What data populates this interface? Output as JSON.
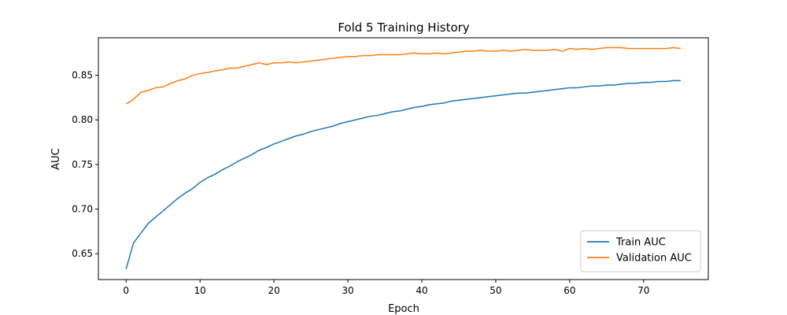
{
  "chart_data": {
    "type": "line",
    "title": "Fold 5 Training History",
    "xlabel": "Epoch",
    "ylabel": "AUC",
    "xlim": [
      -3.75,
      78.75
    ],
    "ylim": [
      0.621,
      0.892
    ],
    "xticks": [
      0,
      10,
      20,
      30,
      40,
      50,
      60,
      70
    ],
    "yticks": [
      0.65,
      0.7,
      0.75,
      0.8,
      0.85
    ],
    "ytick_labels": [
      "0.65",
      "0.70",
      "0.75",
      "0.80",
      "0.85"
    ],
    "grid": false,
    "legend_position": "lower-right",
    "x": [
      0,
      1,
      2,
      3,
      4,
      5,
      6,
      7,
      8,
      9,
      10,
      11,
      12,
      13,
      14,
      15,
      16,
      17,
      18,
      19,
      20,
      21,
      22,
      23,
      24,
      25,
      26,
      27,
      28,
      29,
      30,
      31,
      32,
      33,
      34,
      35,
      36,
      37,
      38,
      39,
      40,
      41,
      42,
      43,
      44,
      45,
      46,
      47,
      48,
      49,
      50,
      51,
      52,
      53,
      54,
      55,
      56,
      57,
      58,
      59,
      60,
      61,
      62,
      63,
      64,
      65,
      66,
      67,
      68,
      69,
      70,
      71,
      72,
      73,
      74,
      75
    ],
    "series": [
      {
        "name": "Train AUC",
        "color": "#1f77b4",
        "values": [
          0.633,
          0.662,
          0.673,
          0.684,
          0.691,
          0.698,
          0.705,
          0.712,
          0.718,
          0.723,
          0.73,
          0.735,
          0.739,
          0.744,
          0.748,
          0.753,
          0.757,
          0.761,
          0.766,
          0.769,
          0.773,
          0.776,
          0.779,
          0.782,
          0.784,
          0.787,
          0.789,
          0.791,
          0.793,
          0.796,
          0.798,
          0.8,
          0.802,
          0.804,
          0.805,
          0.807,
          0.809,
          0.81,
          0.812,
          0.814,
          0.815,
          0.817,
          0.818,
          0.819,
          0.821,
          0.822,
          0.823,
          0.824,
          0.825,
          0.826,
          0.827,
          0.828,
          0.829,
          0.83,
          0.83,
          0.831,
          0.832,
          0.833,
          0.834,
          0.835,
          0.836,
          0.836,
          0.837,
          0.838,
          0.838,
          0.839,
          0.839,
          0.84,
          0.841,
          0.841,
          0.842,
          0.842,
          0.843,
          0.843,
          0.844,
          0.844
        ]
      },
      {
        "name": "Validation AUC",
        "color": "#ff7f0e",
        "values": [
          0.818,
          0.823,
          0.831,
          0.833,
          0.836,
          0.837,
          0.841,
          0.844,
          0.846,
          0.85,
          0.852,
          0.853,
          0.855,
          0.856,
          0.858,
          0.858,
          0.86,
          0.862,
          0.864,
          0.862,
          0.864,
          0.864,
          0.865,
          0.864,
          0.865,
          0.866,
          0.867,
          0.868,
          0.869,
          0.87,
          0.871,
          0.871,
          0.872,
          0.872,
          0.873,
          0.873,
          0.873,
          0.873,
          0.874,
          0.875,
          0.874,
          0.874,
          0.875,
          0.874,
          0.875,
          0.876,
          0.877,
          0.877,
          0.878,
          0.877,
          0.877,
          0.878,
          0.877,
          0.878,
          0.879,
          0.878,
          0.878,
          0.878,
          0.879,
          0.877,
          0.88,
          0.879,
          0.88,
          0.879,
          0.88,
          0.881,
          0.881,
          0.881,
          0.88,
          0.88,
          0.88,
          0.88,
          0.88,
          0.88,
          0.881,
          0.88
        ]
      }
    ]
  }
}
